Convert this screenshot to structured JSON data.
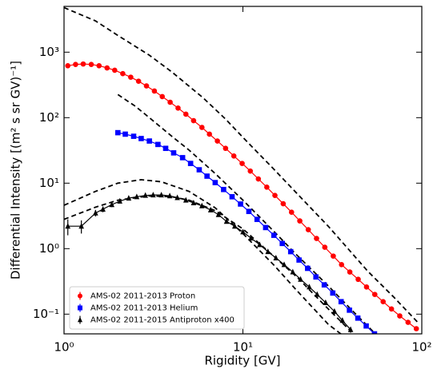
{
  "chart_data": {
    "type": "scatter",
    "xlabel": "Rigidity [GV]",
    "ylabel": "Differential Intensity [(m² s sr GV)⁻¹]",
    "xscale": "log",
    "yscale": "log",
    "xlim": [
      1,
      100
    ],
    "ylim": [
      0.05,
      5000
    ],
    "xticks": [
      {
        "value": 1,
        "label": "10⁰"
      },
      {
        "value": 10,
        "label": "10¹"
      },
      {
        "value": 100,
        "label": "10²"
      }
    ],
    "yticks": [
      {
        "value": 0.1,
        "label": "10⁻¹"
      },
      {
        "value": 1,
        "label": "10⁰"
      },
      {
        "value": 10,
        "label": "10¹"
      },
      {
        "value": 100,
        "label": "10²"
      },
      {
        "value": 1000,
        "label": "10³"
      }
    ],
    "legend": "lower left",
    "series": [
      {
        "name": "AMS-02 2011-2013 Proton",
        "color": "#ff0000",
        "marker": "circle",
        "x": [
          1.05,
          1.16,
          1.28,
          1.42,
          1.57,
          1.74,
          1.92,
          2.13,
          2.36,
          2.61,
          2.89,
          3.2,
          3.54,
          3.92,
          4.34,
          4.8,
          5.3,
          5.9,
          6.5,
          7.2,
          8.0,
          8.9,
          9.9,
          11.0,
          12.2,
          13.6,
          15.1,
          16.8,
          18.7,
          20.8,
          23.2,
          25.8,
          28.7,
          32.0,
          35.6,
          39.6,
          44.1,
          49.1,
          54.6,
          60.8,
          67.7,
          75.3,
          83.8,
          93.2
        ],
        "values": [
          620,
          650,
          660,
          650,
          620,
          575,
          530,
          470,
          415,
          360,
          305,
          255,
          210,
          172,
          140,
          113,
          90,
          71,
          56,
          44,
          34,
          26,
          20,
          15.3,
          11.6,
          8.7,
          6.5,
          4.85,
          3.6,
          2.65,
          1.95,
          1.43,
          1.05,
          0.77,
          0.57,
          0.44,
          0.34,
          0.26,
          0.2,
          0.155,
          0.12,
          0.094,
          0.075,
          0.06
        ]
      },
      {
        "name": "AMS-02 2011-2013 Helium",
        "color": "#0000ff",
        "marker": "square",
        "x": [
          2.0,
          2.2,
          2.45,
          2.7,
          3.0,
          3.35,
          3.7,
          4.1,
          4.6,
          5.1,
          5.7,
          6.3,
          7.0,
          7.8,
          8.7,
          9.7,
          10.8,
          12.0,
          13.4,
          14.9,
          16.6,
          18.5,
          20.6,
          23.0,
          25.6,
          28.5,
          31.8,
          35.4,
          39.4,
          43.9,
          48.9,
          54.4
        ],
        "values": [
          59,
          56,
          52,
          48,
          44,
          39,
          34,
          29,
          24.5,
          20,
          16,
          12.8,
          10.2,
          8.0,
          6.2,
          4.8,
          3.7,
          2.8,
          2.1,
          1.6,
          1.2,
          0.9,
          0.67,
          0.5,
          0.37,
          0.28,
          0.21,
          0.155,
          0.115,
          0.087,
          0.066,
          0.05
        ]
      },
      {
        "name": "AMS-02 2011-2015 Antiproton x400",
        "color": "#000000",
        "marker": "triangle",
        "x": [
          1.05,
          1.25,
          1.5,
          1.65,
          1.85,
          2.05,
          2.3,
          2.55,
          2.85,
          3.15,
          3.5,
          3.9,
          4.3,
          4.8,
          5.3,
          5.9,
          6.6,
          7.3,
          8.1,
          9.0,
          10.0,
          11.1,
          12.4,
          13.8,
          15.3,
          17.0,
          19.0,
          21.0,
          23.5,
          26.0,
          29.0,
          32.5,
          36.0,
          40.0
        ],
        "values": [
          2.2,
          2.2,
          3.5,
          4.0,
          4.7,
          5.3,
          5.9,
          6.2,
          6.5,
          6.6,
          6.6,
          6.4,
          6.0,
          5.5,
          5.0,
          4.5,
          3.9,
          3.3,
          2.6,
          2.2,
          1.8,
          1.45,
          1.15,
          0.9,
          0.72,
          0.57,
          0.44,
          0.34,
          0.26,
          0.2,
          0.15,
          0.11,
          0.08,
          0.058
        ],
        "errors": [
          0.6,
          0.5,
          0.4,
          0.4,
          0.4,
          0.4,
          0.4,
          0.4,
          0.4,
          0.4,
          0.4,
          0.4,
          0.35,
          0.3,
          0.3,
          0.25,
          0.2,
          0.2,
          0.15,
          0.12,
          0.1,
          0.08,
          0.07,
          0.05,
          0.04,
          0.03,
          0.03,
          0.02,
          0.02,
          0.015,
          0.012,
          0.01,
          0.008,
          0.006
        ]
      }
    ],
    "curves": [
      {
        "color": "#000000",
        "x": [
          1.0,
          1.5,
          2,
          3,
          4,
          6,
          8,
          10,
          15,
          20,
          30,
          50,
          70,
          95
        ],
        "values": [
          4800,
          3000,
          1800,
          900,
          500,
          200,
          95,
          50,
          16,
          7,
          2.2,
          0.45,
          0.18,
          0.075
        ]
      },
      {
        "color": "#000000",
        "x": [
          2,
          2.5,
          3,
          4,
          5,
          7,
          10,
          15,
          20,
          30,
          40,
          55
        ],
        "values": [
          225,
          150,
          100,
          52,
          32,
          14,
          5.5,
          1.8,
          0.8,
          0.27,
          0.12,
          0.05
        ]
      },
      {
        "color": "#000000",
        "x": [
          1,
          1.5,
          2,
          2.7,
          3.5,
          5,
          7,
          10,
          15,
          20,
          30,
          36
        ],
        "values": [
          4.6,
          7.5,
          10,
          11.3,
          10.5,
          7.5,
          4.2,
          1.7,
          0.55,
          0.23,
          0.07,
          0.048
        ]
      },
      {
        "color": "#000000",
        "x": [
          1,
          1.5,
          2,
          3,
          4,
          5,
          7,
          10,
          15,
          20,
          30,
          40
        ],
        "values": [
          2.8,
          4.3,
          5.5,
          6.4,
          6.2,
          5.5,
          3.8,
          2.0,
          0.75,
          0.37,
          0.12,
          0.055
        ]
      }
    ]
  }
}
